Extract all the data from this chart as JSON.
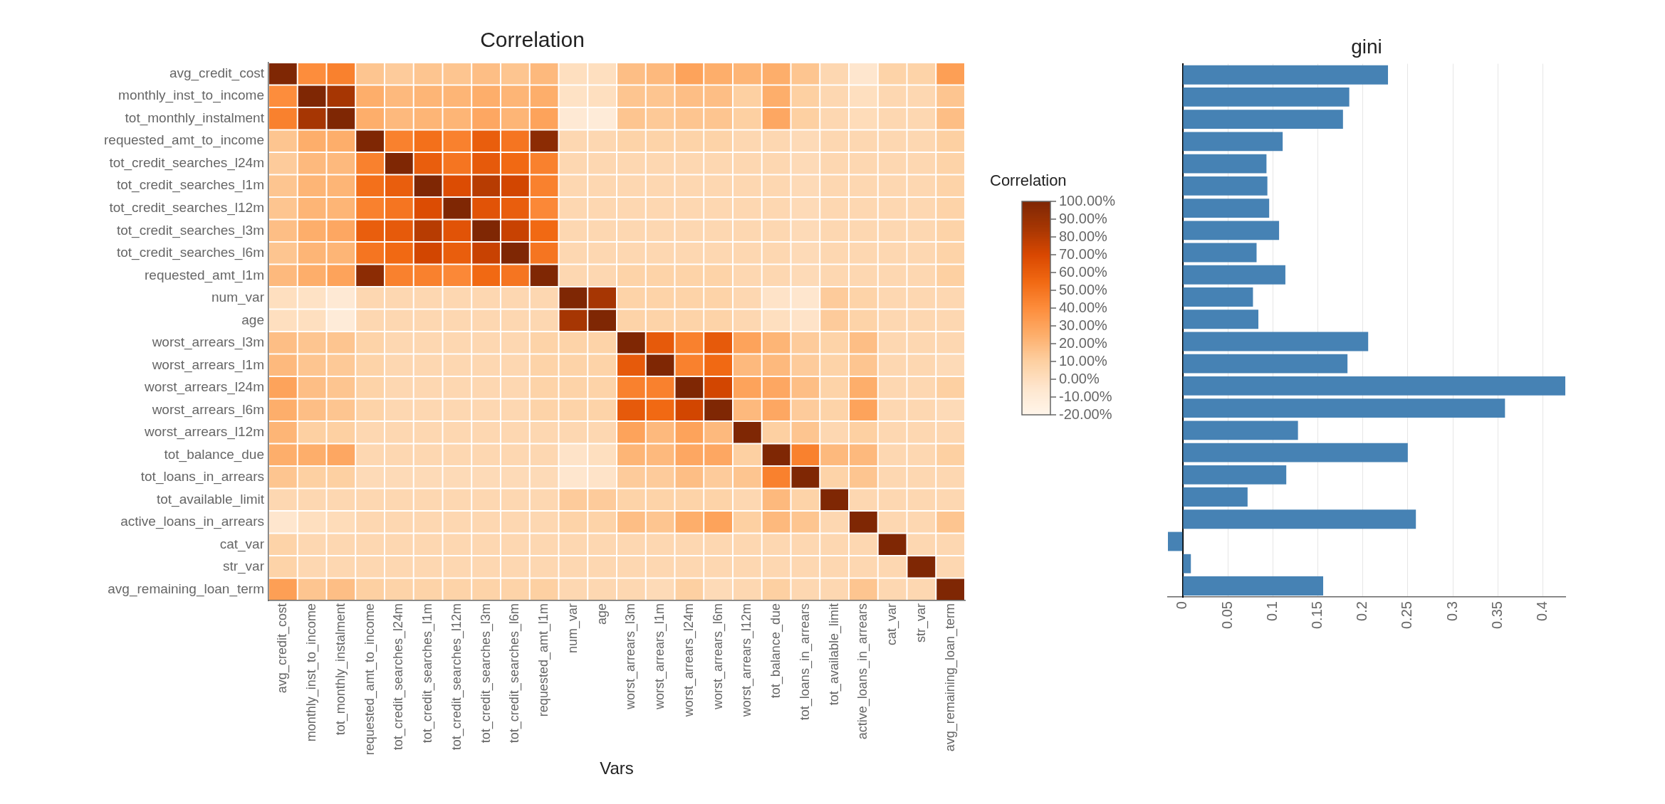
{
  "chart_data": [
    {
      "type": "heatmap",
      "title": "Correlation",
      "xlabel": "Vars",
      "clabel": "Correlation",
      "categories": [
        "avg_credit_cost",
        "monthly_inst_to_income",
        "tot_monthly_instalment",
        "requested_amt_to_income",
        "tot_credit_searches_l24m",
        "tot_credit_searches_l1m",
        "tot_credit_searches_l12m",
        "tot_credit_searches_l3m",
        "tot_credit_searches_l6m",
        "requested_amt_l1m",
        "num_var",
        "age",
        "worst_arrears_l3m",
        "worst_arrears_l1m",
        "worst_arrears_l24m",
        "worst_arrears_l6m",
        "worst_arrears_l12m",
        "tot_balance_due",
        "tot_loans_in_arrears",
        "tot_available_limit",
        "active_loans_in_arrears",
        "cat_var",
        "str_var",
        "avg_remaining_loan_term"
      ],
      "y_categories": [
        "avg_credit_cost",
        "monthly_inst_to_income",
        "tot_monthly_instalment",
        "requested_amt_to_income",
        "tot_credit_searches_l24m",
        "tot_credit_searches_l1m",
        "tot_credit_searches_l12m",
        "tot_credit_searches_l3m",
        "tot_credit_searches_l6m",
        "requested_amt_l1m",
        "num_var",
        "age",
        "worst_arrears_l3m",
        "worst_arrears_l1m",
        "worst_arrears_l24m",
        "worst_arrears_l6m",
        "worst_arrears_l12m",
        "tot_balance_due",
        "tot_loans_in_arrears",
        "tot_available_limit",
        "active_loans_in_arrears",
        "cat_var",
        "str_var",
        "avg_remaining_loan_term"
      ],
      "cells": [
        [
          100,
          40,
          45,
          15,
          12,
          15,
          15,
          18,
          15,
          20,
          0,
          0,
          18,
          20,
          30,
          25,
          22,
          25,
          15,
          5,
          -5,
          8,
          8,
          32
        ],
        [
          40,
          100,
          85,
          25,
          20,
          22,
          22,
          25,
          22,
          25,
          -2,
          0,
          15,
          15,
          18,
          18,
          10,
          25,
          10,
          5,
          0,
          5,
          5,
          15
        ],
        [
          45,
          85,
          100,
          25,
          20,
          22,
          22,
          28,
          22,
          30,
          -8,
          -10,
          15,
          13,
          15,
          15,
          10,
          28,
          10,
          5,
          2,
          5,
          5,
          18
        ],
        [
          15,
          25,
          25,
          100,
          45,
          52,
          45,
          60,
          50,
          95,
          5,
          5,
          8,
          8,
          8,
          8,
          5,
          5,
          3,
          5,
          5,
          5,
          5,
          10
        ],
        [
          12,
          20,
          20,
          45,
          100,
          60,
          50,
          62,
          55,
          45,
          5,
          5,
          5,
          5,
          5,
          5,
          5,
          5,
          3,
          5,
          5,
          5,
          5,
          8
        ],
        [
          15,
          22,
          22,
          52,
          60,
          100,
          68,
          80,
          72,
          45,
          5,
          5,
          5,
          5,
          5,
          5,
          5,
          5,
          3,
          5,
          5,
          5,
          5,
          8
        ],
        [
          15,
          22,
          22,
          45,
          50,
          68,
          100,
          65,
          60,
          42,
          5,
          5,
          5,
          5,
          5,
          5,
          5,
          5,
          3,
          5,
          5,
          5,
          5,
          8
        ],
        [
          18,
          25,
          28,
          60,
          62,
          80,
          65,
          100,
          75,
          55,
          5,
          5,
          5,
          5,
          5,
          5,
          5,
          5,
          3,
          5,
          5,
          5,
          5,
          8
        ],
        [
          15,
          22,
          22,
          50,
          55,
          72,
          60,
          75,
          100,
          50,
          5,
          5,
          5,
          5,
          5,
          5,
          5,
          5,
          3,
          5,
          5,
          5,
          5,
          8
        ],
        [
          20,
          25,
          30,
          95,
          45,
          45,
          42,
          55,
          50,
          100,
          5,
          5,
          8,
          8,
          8,
          8,
          5,
          5,
          3,
          5,
          5,
          5,
          5,
          10
        ],
        [
          0,
          -2,
          -8,
          5,
          5,
          5,
          5,
          5,
          5,
          5,
          100,
          85,
          8,
          8,
          8,
          8,
          5,
          -3,
          -5,
          12,
          8,
          5,
          5,
          5
        ],
        [
          0,
          0,
          -10,
          5,
          5,
          5,
          5,
          5,
          5,
          5,
          85,
          100,
          8,
          8,
          8,
          8,
          5,
          0,
          -3,
          12,
          8,
          5,
          5,
          5
        ],
        [
          18,
          15,
          15,
          8,
          5,
          5,
          5,
          5,
          5,
          8,
          8,
          8,
          100,
          62,
          45,
          62,
          30,
          22,
          12,
          8,
          18,
          5,
          5,
          5
        ],
        [
          20,
          15,
          13,
          8,
          5,
          5,
          5,
          5,
          5,
          8,
          8,
          8,
          62,
          100,
          45,
          55,
          20,
          20,
          12,
          8,
          15,
          5,
          5,
          3
        ],
        [
          30,
          18,
          15,
          8,
          5,
          5,
          5,
          5,
          5,
          8,
          8,
          8,
          45,
          45,
          100,
          72,
          30,
          28,
          18,
          8,
          25,
          5,
          5,
          10
        ],
        [
          25,
          18,
          15,
          8,
          5,
          5,
          5,
          5,
          5,
          8,
          8,
          8,
          62,
          55,
          72,
          100,
          20,
          28,
          12,
          8,
          30,
          5,
          5,
          3
        ],
        [
          22,
          10,
          10,
          5,
          5,
          5,
          5,
          5,
          5,
          5,
          5,
          5,
          30,
          20,
          30,
          20,
          100,
          10,
          15,
          5,
          10,
          5,
          5,
          5
        ],
        [
          25,
          25,
          28,
          5,
          5,
          5,
          5,
          5,
          5,
          5,
          -3,
          0,
          22,
          20,
          28,
          28,
          10,
          100,
          45,
          20,
          20,
          5,
          5,
          10
        ],
        [
          15,
          10,
          10,
          3,
          3,
          3,
          3,
          3,
          3,
          3,
          -5,
          -3,
          12,
          12,
          18,
          12,
          15,
          45,
          100,
          8,
          15,
          5,
          5,
          5
        ],
        [
          5,
          5,
          5,
          5,
          5,
          5,
          5,
          5,
          5,
          5,
          12,
          12,
          8,
          8,
          8,
          8,
          5,
          20,
          8,
          100,
          5,
          5,
          5,
          5
        ],
        [
          -5,
          0,
          2,
          5,
          5,
          5,
          5,
          5,
          5,
          5,
          8,
          8,
          18,
          15,
          25,
          30,
          10,
          20,
          15,
          5,
          100,
          5,
          5,
          15
        ],
        [
          8,
          5,
          5,
          5,
          5,
          5,
          5,
          5,
          5,
          5,
          5,
          5,
          5,
          5,
          5,
          5,
          5,
          5,
          5,
          5,
          5,
          100,
          5,
          5
        ],
        [
          8,
          5,
          5,
          5,
          5,
          5,
          5,
          5,
          5,
          5,
          5,
          5,
          5,
          5,
          5,
          5,
          5,
          5,
          5,
          5,
          5,
          5,
          100,
          5
        ],
        [
          32,
          15,
          18,
          10,
          8,
          8,
          8,
          8,
          8,
          10,
          5,
          5,
          5,
          3,
          10,
          3,
          5,
          10,
          5,
          5,
          15,
          5,
          5,
          100
        ]
      ],
      "clim": [
        -20,
        100
      ],
      "cticks": [
        {
          "value": 100,
          "label": "100.00%"
        },
        {
          "value": 90,
          "label": "90.00%"
        },
        {
          "value": 80,
          "label": "80.00%"
        },
        {
          "value": 70,
          "label": "70.00%"
        },
        {
          "value": 60,
          "label": "60.00%"
        },
        {
          "value": 50,
          "label": "50.00%"
        },
        {
          "value": 40,
          "label": "40.00%"
        },
        {
          "value": 30,
          "label": "30.00%"
        },
        {
          "value": 20,
          "label": "20.00%"
        },
        {
          "value": 10,
          "label": "10.00%"
        },
        {
          "value": 0,
          "label": "0.00%"
        },
        {
          "value": -10,
          "label": "-10.00%"
        },
        {
          "value": -20,
          "label": "-20.00%"
        }
      ]
    },
    {
      "type": "bar",
      "title": "gini",
      "orientation": "horizontal",
      "color": "#4682b4",
      "grid": "x",
      "tick_labels": "x",
      "categories": [
        null,
        null,
        null,
        null,
        null,
        null,
        null,
        null,
        null,
        null,
        null,
        null,
        null,
        null,
        null,
        null,
        null,
        null,
        null,
        null,
        null,
        null,
        null,
        null
      ],
      "values": [
        0.228,
        0.185,
        0.178,
        0.111,
        0.093,
        0.094,
        0.096,
        0.107,
        0.082,
        0.114,
        0.078,
        0.084,
        0.206,
        0.183,
        0.425,
        0.358,
        0.128,
        0.25,
        0.115,
        0.072,
        0.259,
        -0.0165,
        0.009,
        0.156
      ],
      "xlim": [
        -0.0165,
        0.425
      ],
      "xticks": [
        0,
        0.05,
        0.1,
        0.15,
        0.2,
        0.25,
        0.3,
        0.35,
        0.4
      ]
    }
  ]
}
